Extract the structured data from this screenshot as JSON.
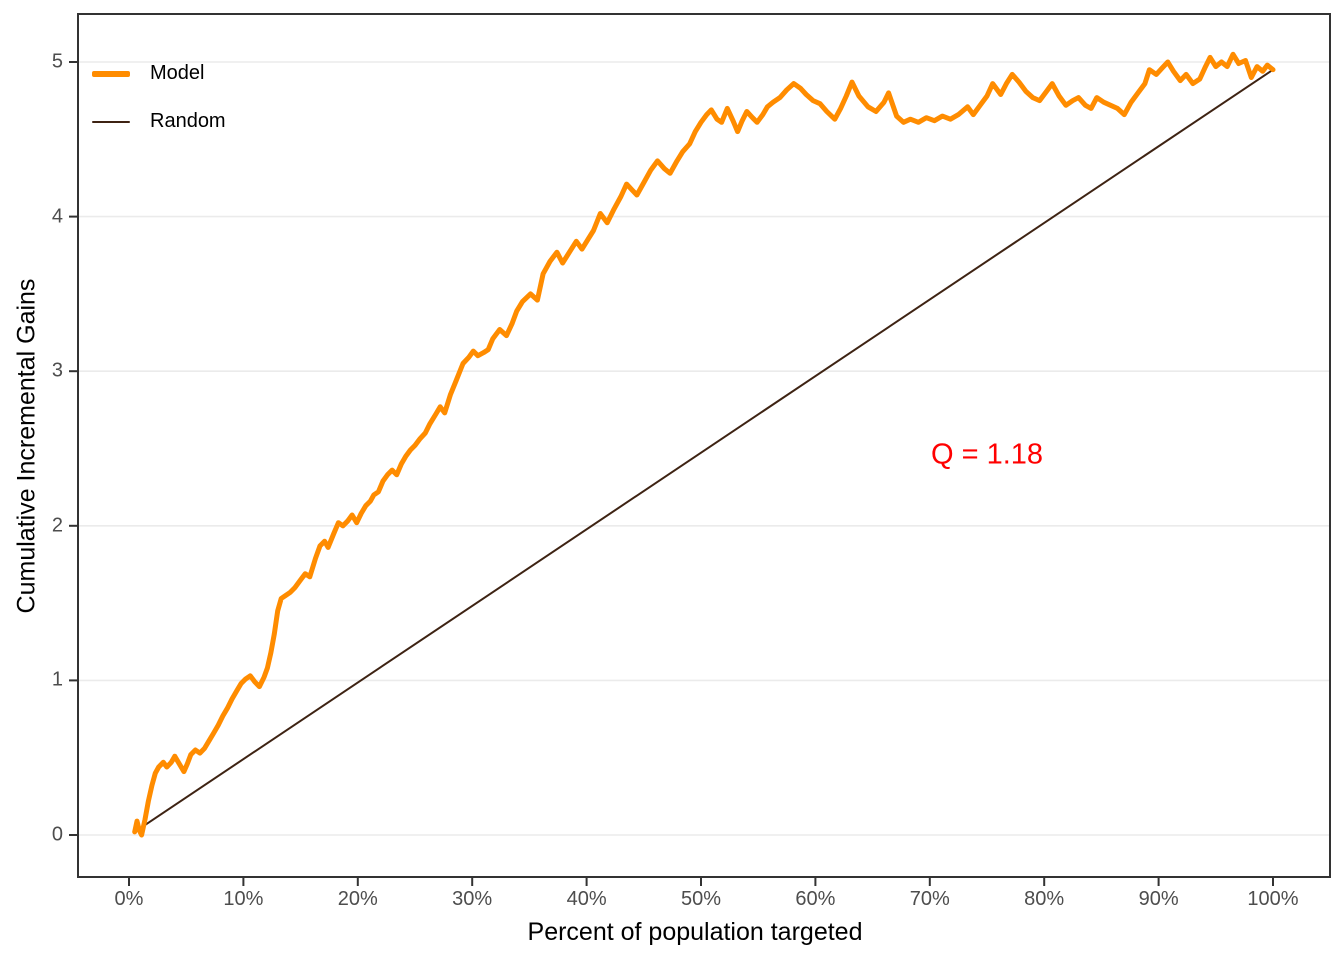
{
  "chart_data": {
    "type": "line",
    "title": "",
    "xlabel": "Percent of population targeted",
    "ylabel": "Cumulative Incremental Gains",
    "x_ticks": [
      "0%",
      "10%",
      "20%",
      "30%",
      "40%",
      "50%",
      "60%",
      "70%",
      "80%",
      "90%",
      "100%"
    ],
    "x_tick_values": [
      0,
      10,
      20,
      30,
      40,
      50,
      60,
      70,
      80,
      90,
      100
    ],
    "y_ticks": [
      "0",
      "1",
      "2",
      "3",
      "4",
      "5"
    ],
    "y_tick_values": [
      0,
      1,
      2,
      3,
      4,
      5
    ],
    "xlim": [
      -4.7,
      105.2
    ],
    "ylim": [
      -0.27,
      5.3
    ],
    "grid": "horizontal-major-only",
    "legend": {
      "position": "inside-top-left",
      "entries": [
        {
          "label": "Model",
          "color": "#FF8C00",
          "line_width": 6
        },
        {
          "label": "Random",
          "color": "#3E2313",
          "line_width": 2
        }
      ]
    },
    "annotation": {
      "text": "Q = 1.18",
      "color": "#FF0000",
      "x_pct": 75,
      "y_value": 2.46
    },
    "series": [
      {
        "name": "Model",
        "color": "#FF8C00",
        "stroke_width": 5,
        "points": [
          [
            0.5,
            0.02
          ],
          [
            0.7,
            0.09
          ],
          [
            0.9,
            0.03
          ],
          [
            1.1,
            0.0
          ],
          [
            1.4,
            0.1
          ],
          [
            1.7,
            0.22
          ],
          [
            2.0,
            0.32
          ],
          [
            2.3,
            0.4
          ],
          [
            2.6,
            0.44
          ],
          [
            3.0,
            0.47
          ],
          [
            3.3,
            0.44
          ],
          [
            3.7,
            0.47
          ],
          [
            4.0,
            0.51
          ],
          [
            4.4,
            0.46
          ],
          [
            4.8,
            0.41
          ],
          [
            5.1,
            0.46
          ],
          [
            5.4,
            0.52
          ],
          [
            5.8,
            0.55
          ],
          [
            6.2,
            0.53
          ],
          [
            6.6,
            0.56
          ],
          [
            7.0,
            0.61
          ],
          [
            7.4,
            0.66
          ],
          [
            7.8,
            0.71
          ],
          [
            8.2,
            0.77
          ],
          [
            8.6,
            0.82
          ],
          [
            9.0,
            0.88
          ],
          [
            9.4,
            0.93
          ],
          [
            9.8,
            0.98
          ],
          [
            10.2,
            1.01
          ],
          [
            10.6,
            1.03
          ],
          [
            11.0,
            0.99
          ],
          [
            11.4,
            0.96
          ],
          [
            11.8,
            1.02
          ],
          [
            12.1,
            1.08
          ],
          [
            12.4,
            1.18
          ],
          [
            12.7,
            1.3
          ],
          [
            13.0,
            1.45
          ],
          [
            13.3,
            1.53
          ],
          [
            13.7,
            1.55
          ],
          [
            14.1,
            1.57
          ],
          [
            14.5,
            1.6
          ],
          [
            15.0,
            1.65
          ],
          [
            15.4,
            1.69
          ],
          [
            15.8,
            1.67
          ],
          [
            16.3,
            1.79
          ],
          [
            16.7,
            1.87
          ],
          [
            17.1,
            1.9
          ],
          [
            17.4,
            1.86
          ],
          [
            17.9,
            1.95
          ],
          [
            18.3,
            2.02
          ],
          [
            18.7,
            2.0
          ],
          [
            19.1,
            2.03
          ],
          [
            19.5,
            2.07
          ],
          [
            19.9,
            2.02
          ],
          [
            20.3,
            2.08
          ],
          [
            20.7,
            2.13
          ],
          [
            21.1,
            2.16
          ],
          [
            21.4,
            2.2
          ],
          [
            21.8,
            2.22
          ],
          [
            22.2,
            2.29
          ],
          [
            22.6,
            2.33
          ],
          [
            23.0,
            2.36
          ],
          [
            23.4,
            2.33
          ],
          [
            23.8,
            2.4
          ],
          [
            24.2,
            2.45
          ],
          [
            24.6,
            2.49
          ],
          [
            25.0,
            2.52
          ],
          [
            25.4,
            2.56
          ],
          [
            25.9,
            2.6
          ],
          [
            26.3,
            2.66
          ],
          [
            26.8,
            2.72
          ],
          [
            27.2,
            2.77
          ],
          [
            27.6,
            2.73
          ],
          [
            28.1,
            2.85
          ],
          [
            28.6,
            2.94
          ],
          [
            29.2,
            3.05
          ],
          [
            29.7,
            3.09
          ],
          [
            30.1,
            3.13
          ],
          [
            30.5,
            3.1
          ],
          [
            31.0,
            3.12
          ],
          [
            31.4,
            3.14
          ],
          [
            31.8,
            3.21
          ],
          [
            32.4,
            3.27
          ],
          [
            33.0,
            3.23
          ],
          [
            33.5,
            3.31
          ],
          [
            33.9,
            3.39
          ],
          [
            34.4,
            3.45
          ],
          [
            35.1,
            3.5
          ],
          [
            35.7,
            3.46
          ],
          [
            36.2,
            3.63
          ],
          [
            36.8,
            3.71
          ],
          [
            37.4,
            3.77
          ],
          [
            37.9,
            3.7
          ],
          [
            38.5,
            3.77
          ],
          [
            39.1,
            3.84
          ],
          [
            39.6,
            3.79
          ],
          [
            40.1,
            3.85
          ],
          [
            40.6,
            3.91
          ],
          [
            41.2,
            4.02
          ],
          [
            41.8,
            3.96
          ],
          [
            42.4,
            4.05
          ],
          [
            43.0,
            4.13
          ],
          [
            43.5,
            4.21
          ],
          [
            44.0,
            4.17
          ],
          [
            44.4,
            4.14
          ],
          [
            45.0,
            4.22
          ],
          [
            45.6,
            4.3
          ],
          [
            46.2,
            4.36
          ],
          [
            46.8,
            4.31
          ],
          [
            47.3,
            4.28
          ],
          [
            47.9,
            4.36
          ],
          [
            48.4,
            4.42
          ],
          [
            49.0,
            4.47
          ],
          [
            49.5,
            4.55
          ],
          [
            50.0,
            4.61
          ],
          [
            50.5,
            4.66
          ],
          [
            50.9,
            4.69
          ],
          [
            51.4,
            4.63
          ],
          [
            51.8,
            4.61
          ],
          [
            52.3,
            4.7
          ],
          [
            52.8,
            4.62
          ],
          [
            53.2,
            4.55
          ],
          [
            53.6,
            4.62
          ],
          [
            54.0,
            4.68
          ],
          [
            54.5,
            4.64
          ],
          [
            54.9,
            4.61
          ],
          [
            55.4,
            4.66
          ],
          [
            55.8,
            4.71
          ],
          [
            56.3,
            4.74
          ],
          [
            56.9,
            4.77
          ],
          [
            57.5,
            4.82
          ],
          [
            58.1,
            4.86
          ],
          [
            58.7,
            4.83
          ],
          [
            59.2,
            4.79
          ],
          [
            59.8,
            4.75
          ],
          [
            60.4,
            4.73
          ],
          [
            61.0,
            4.68
          ],
          [
            61.7,
            4.63
          ],
          [
            62.2,
            4.7
          ],
          [
            62.7,
            4.78
          ],
          [
            63.2,
            4.87
          ],
          [
            63.8,
            4.78
          ],
          [
            64.6,
            4.71
          ],
          [
            65.3,
            4.68
          ],
          [
            66.0,
            4.74
          ],
          [
            66.4,
            4.8
          ],
          [
            67.1,
            4.65
          ],
          [
            67.7,
            4.61
          ],
          [
            68.3,
            4.63
          ],
          [
            69.0,
            4.61
          ],
          [
            69.7,
            4.64
          ],
          [
            70.4,
            4.62
          ],
          [
            71.1,
            4.65
          ],
          [
            71.8,
            4.63
          ],
          [
            72.5,
            4.66
          ],
          [
            73.3,
            4.71
          ],
          [
            73.8,
            4.66
          ],
          [
            74.4,
            4.72
          ],
          [
            75.0,
            4.78
          ],
          [
            75.5,
            4.86
          ],
          [
            76.2,
            4.79
          ],
          [
            76.7,
            4.86
          ],
          [
            77.2,
            4.92
          ],
          [
            77.8,
            4.87
          ],
          [
            78.4,
            4.81
          ],
          [
            79.0,
            4.77
          ],
          [
            79.6,
            4.75
          ],
          [
            80.2,
            4.81
          ],
          [
            80.7,
            4.86
          ],
          [
            81.3,
            4.78
          ],
          [
            81.9,
            4.72
          ],
          [
            82.5,
            4.75
          ],
          [
            83.0,
            4.77
          ],
          [
            83.6,
            4.72
          ],
          [
            84.1,
            4.7
          ],
          [
            84.6,
            4.77
          ],
          [
            85.2,
            4.74
          ],
          [
            85.8,
            4.72
          ],
          [
            86.4,
            4.7
          ],
          [
            87.0,
            4.66
          ],
          [
            87.6,
            4.74
          ],
          [
            88.2,
            4.8
          ],
          [
            88.8,
            4.86
          ],
          [
            89.2,
            4.95
          ],
          [
            89.8,
            4.92
          ],
          [
            90.3,
            4.96
          ],
          [
            90.8,
            5.0
          ],
          [
            91.3,
            4.94
          ],
          [
            91.9,
            4.88
          ],
          [
            92.4,
            4.92
          ],
          [
            93.0,
            4.86
          ],
          [
            93.6,
            4.89
          ],
          [
            94.1,
            4.97
          ],
          [
            94.5,
            5.03
          ],
          [
            95.0,
            4.97
          ],
          [
            95.5,
            5.0
          ],
          [
            96.0,
            4.97
          ],
          [
            96.5,
            5.05
          ],
          [
            97.0,
            4.99
          ],
          [
            97.6,
            5.01
          ],
          [
            98.1,
            4.9
          ],
          [
            98.6,
            4.97
          ],
          [
            99.1,
            4.94
          ],
          [
            99.5,
            4.98
          ],
          [
            100,
            4.95
          ]
        ]
      },
      {
        "name": "Random",
        "color": "#3E2313",
        "stroke_width": 2,
        "points": [
          [
            0.5,
            0.02
          ],
          [
            100,
            4.95
          ]
        ]
      }
    ],
    "colors": {
      "grid": "#EBEBEB",
      "panel_border": "#333333",
      "tick_mark": "#333333",
      "tick_label": "#4d4d4d",
      "axis_title": "#000000",
      "background": "#ffffff"
    }
  }
}
